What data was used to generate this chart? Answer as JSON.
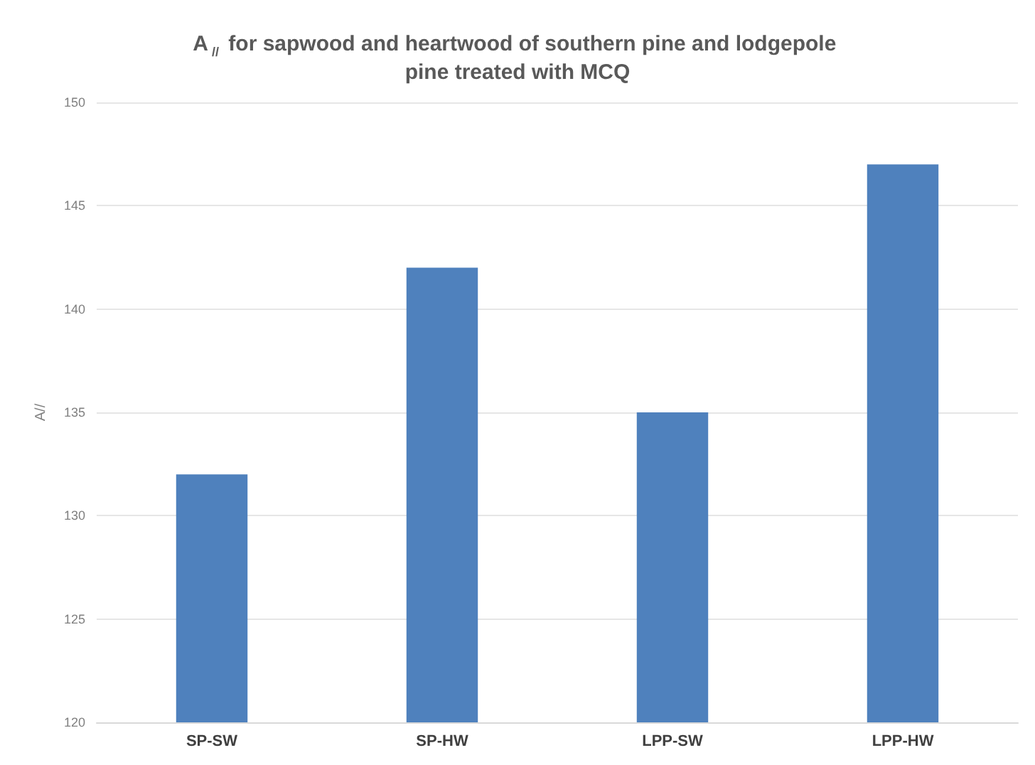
{
  "chart_data": {
    "type": "bar",
    "title": "A$_{//}$ for sapwood and heartwood of southern pine and lodgepole pine treated with MCQ",
    "ylabel": "A//",
    "categories": [
      "SP-SW",
      "SP-HW",
      "LPP-SW",
      "LPP-HW"
    ],
    "values": [
      132,
      142,
      135,
      147
    ],
    "color": "#4f81bd",
    "ylim": [
      120,
      150
    ],
    "yticks": [
      120,
      125,
      130,
      135,
      140,
      145,
      150
    ],
    "grid": "y"
  }
}
